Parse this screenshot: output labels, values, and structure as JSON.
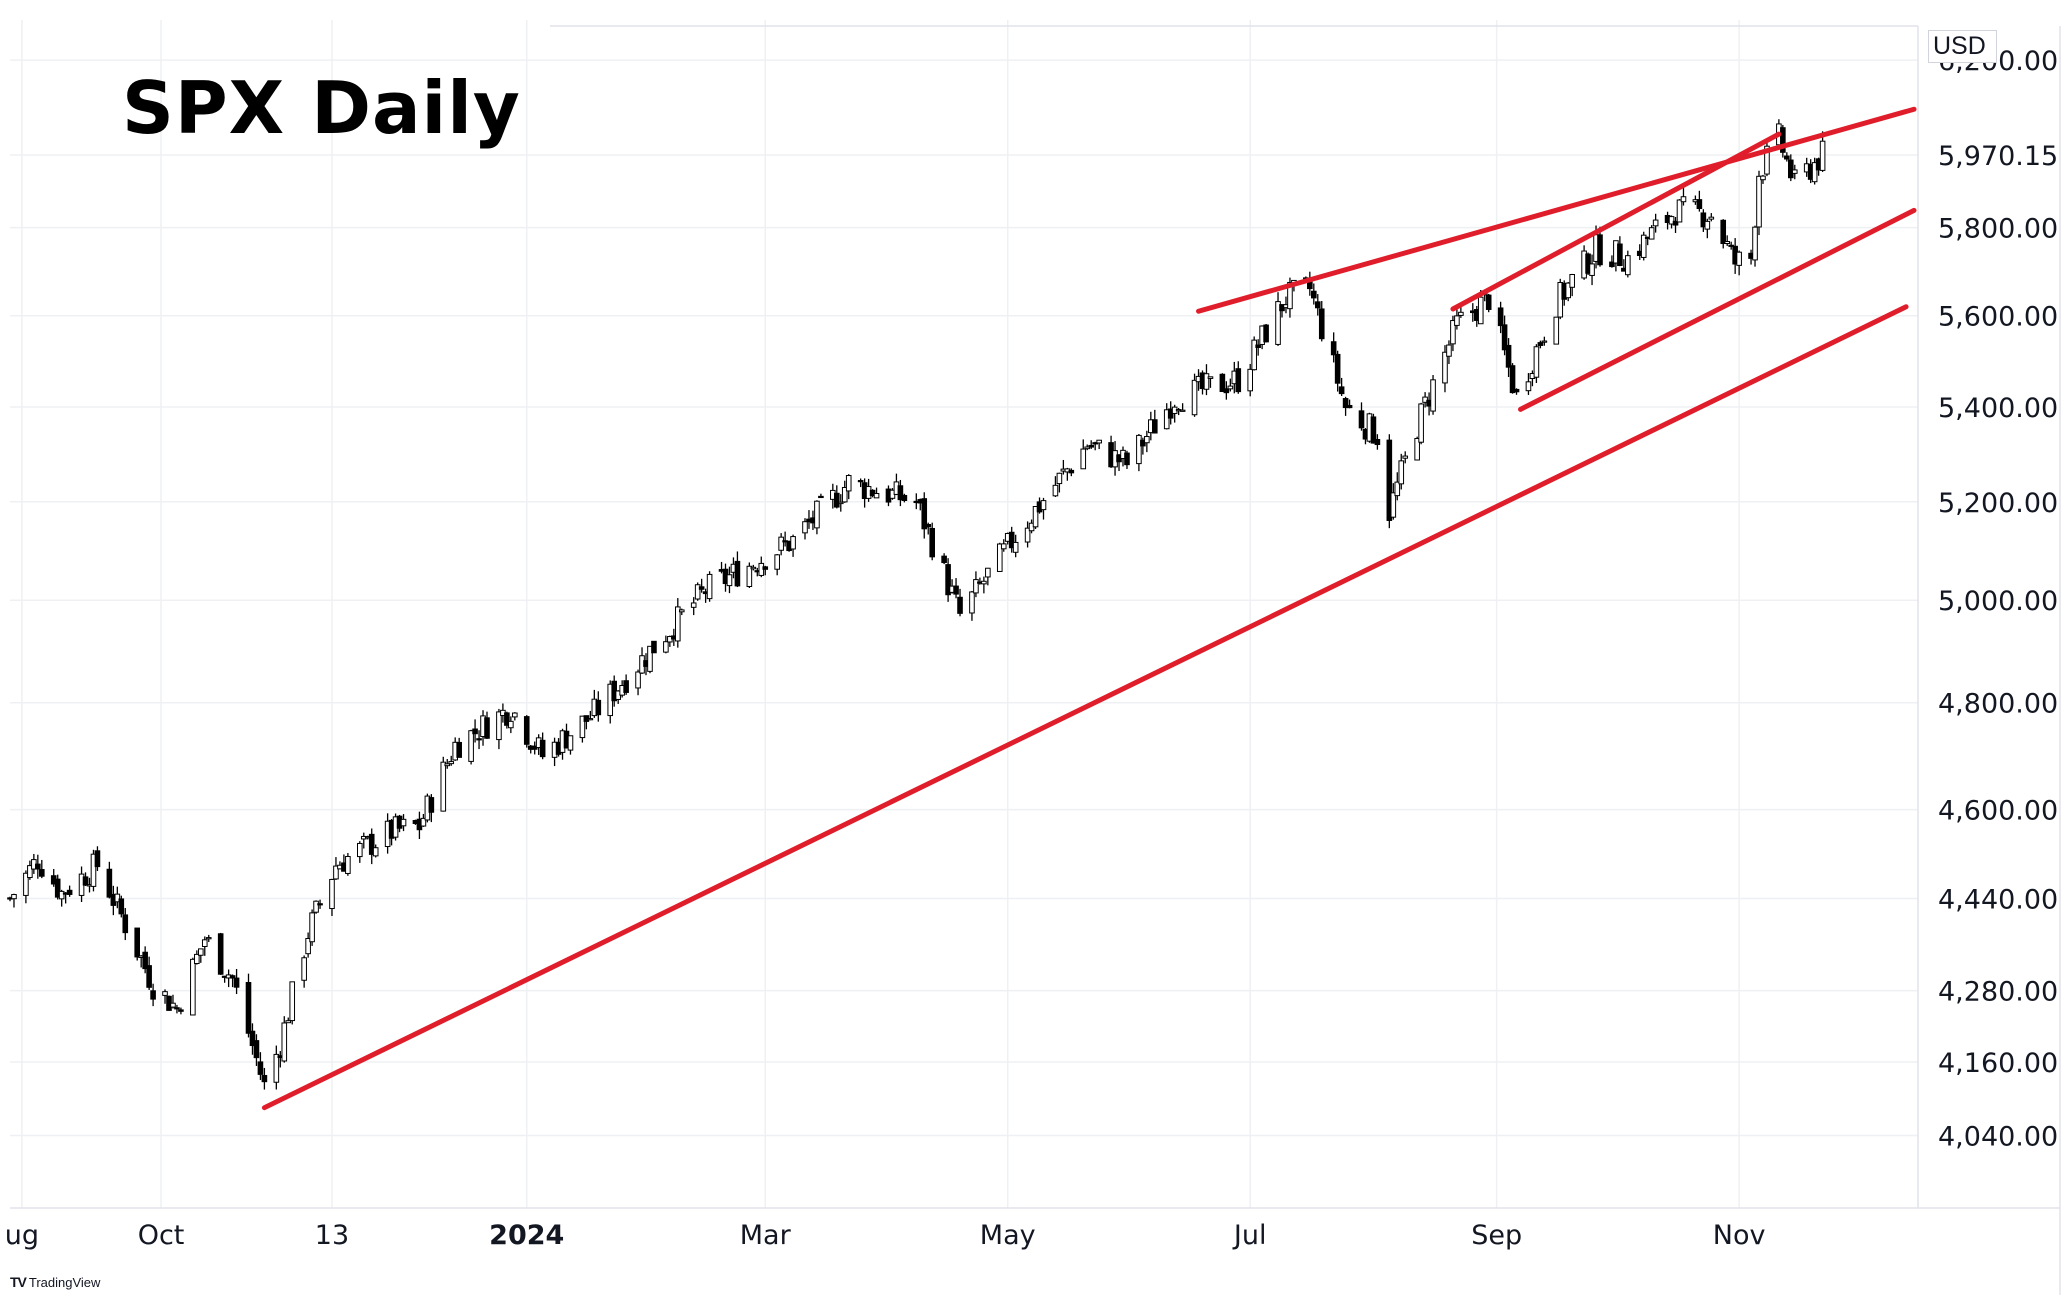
{
  "title": "SPX Daily",
  "currency": "USD",
  "brand": {
    "logo": "TV",
    "name": "TradingView"
  },
  "colors": {
    "candle": "#000000",
    "trendline": "#e01e2b",
    "grid": "#eef0f3",
    "axis_border": "#e0e3eb"
  },
  "chart_data": {
    "type": "candlestick",
    "title": "SPX Daily",
    "y_scale": "log",
    "ylim": [
      3925,
      6300
    ],
    "y_ticks": [
      {
        "value": 6200,
        "label": "6,200.00"
      },
      {
        "value": 5970.15,
        "label": "5,970.15"
      },
      {
        "value": 5800,
        "label": "5,800.00"
      },
      {
        "value": 5600,
        "label": "5,600.00"
      },
      {
        "value": 5400,
        "label": "5,400.00"
      },
      {
        "value": 5200,
        "label": "5,200.00"
      },
      {
        "value": 5000,
        "label": "5,000.00"
      },
      {
        "value": 4800,
        "label": "4,800.00"
      },
      {
        "value": 4600,
        "label": "4,600.00"
      },
      {
        "value": 4440,
        "label": "4,440.00"
      },
      {
        "value": 4280,
        "label": "4,280.00"
      },
      {
        "value": 4160,
        "label": "4,160.00"
      },
      {
        "value": 4040,
        "label": "4,040.00"
      }
    ],
    "x_range": [
      "2023-08-24",
      "2024-12-16"
    ],
    "x_ticks": [
      {
        "date": "2023-08-27",
        "label": "ug",
        "bold": false
      },
      {
        "date": "2023-10-01",
        "label": "Oct",
        "bold": false
      },
      {
        "date": "2023-11-13",
        "label": "13",
        "bold": false
      },
      {
        "date": "2024-01-01",
        "label": "2024",
        "bold": true
      },
      {
        "date": "2024-03-01",
        "label": "Mar",
        "bold": false
      },
      {
        "date": "2024-05-01",
        "label": "May",
        "bold": false
      },
      {
        "date": "2024-07-01",
        "label": "Jul",
        "bold": false
      },
      {
        "date": "2024-09-01",
        "label": "Sep",
        "bold": false
      },
      {
        "date": "2024-11-01",
        "label": "Nov",
        "bold": false
      }
    ],
    "path_points": [
      [
        "2023-08-24",
        4440
      ],
      [
        "2023-08-31",
        4510
      ],
      [
        "2023-09-06",
        4450
      ],
      [
        "2023-09-15",
        4500
      ],
      [
        "2023-09-29",
        4290
      ],
      [
        "2023-10-05",
        4250
      ],
      [
        "2023-10-12",
        4370
      ],
      [
        "2023-10-19",
        4300
      ],
      [
        "2023-10-27",
        4120
      ],
      [
        "2023-10-31",
        4190
      ],
      [
        "2023-11-07",
        4380
      ],
      [
        "2023-11-14",
        4500
      ],
      [
        "2023-11-28",
        4560
      ],
      [
        "2023-12-05",
        4570
      ],
      [
        "2023-12-14",
        4720
      ],
      [
        "2023-12-28",
        4790
      ],
      [
        "2024-01-05",
        4700
      ],
      [
        "2024-01-18",
        4780
      ],
      [
        "2024-02-01",
        4900
      ],
      [
        "2024-02-15",
        5020
      ],
      [
        "2024-03-08",
        5120
      ],
      [
        "2024-03-22",
        5240
      ],
      [
        "2024-04-08",
        5200
      ],
      [
        "2024-04-19",
        4970
      ],
      [
        "2024-05-03",
        5130
      ],
      [
        "2024-05-21",
        5320
      ],
      [
        "2024-05-31",
        5280
      ],
      [
        "2024-06-12",
        5420
      ],
      [
        "2024-06-28",
        5460
      ],
      [
        "2024-07-10",
        5640
      ],
      [
        "2024-07-16",
        5660
      ],
      [
        "2024-07-25",
        5400
      ],
      [
        "2024-08-02",
        5340
      ],
      [
        "2024-08-05",
        5180
      ],
      [
        "2024-08-12",
        5360
      ],
      [
        "2024-08-22",
        5580
      ],
      [
        "2024-08-30",
        5640
      ],
      [
        "2024-09-06",
        5420
      ],
      [
        "2024-09-16",
        5630
      ],
      [
        "2024-09-26",
        5750
      ],
      [
        "2024-10-04",
        5730
      ],
      [
        "2024-10-16",
        5840
      ],
      [
        "2024-10-25",
        5830
      ],
      [
        "2024-10-31",
        5720
      ],
      [
        "2024-11-04",
        5730
      ],
      [
        "2024-11-06",
        5930
      ],
      [
        "2024-11-11",
        6010
      ],
      [
        "2024-11-15",
        5900
      ],
      [
        "2024-11-22",
        5970
      ]
    ],
    "trendlines": [
      {
        "from": [
          "2024-06-18",
          5610
        ],
        "to": [
          "2024-12-15",
          6080
        ]
      },
      {
        "from": [
          "2024-08-21",
          5615
        ],
        "to": [
          "2024-11-11",
          6020
        ]
      },
      {
        "from": [
          "2024-09-07",
          5395
        ],
        "to": [
          "2024-12-15",
          5840
        ]
      },
      {
        "from": [
          "2023-10-27",
          4085
        ],
        "to": [
          "2024-12-13",
          5620
        ]
      }
    ]
  }
}
